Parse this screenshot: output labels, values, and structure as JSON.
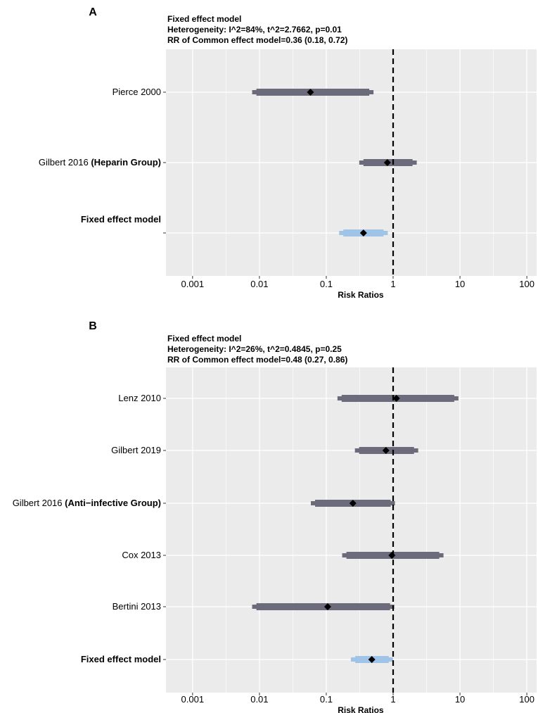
{
  "chart_data": [
    {
      "type": "forest",
      "panel_label": "A",
      "header": [
        "Fixed effect model",
        "Heterogeneity: I^2=84%, t^2=2.7662, p=0.01",
        "RR of Common effect model=0.36 (0.18, 0.72)"
      ],
      "xlabel": "Risk Ratios",
      "xscale": "log10",
      "xlim": [
        0.0004,
        140
      ],
      "xticks": [
        0.001,
        0.01,
        0.1,
        1,
        10,
        100
      ],
      "xtick_labels": [
        "0.001",
        "0.01",
        "0.1",
        "1",
        "10",
        "100"
      ],
      "reference_line": 1,
      "rows": [
        {
          "label_parts": [
            {
              "text": "Pierce 2000",
              "bold": false
            },
            {
              "text": "",
              "bold": false
            }
          ],
          "estimate": 0.058,
          "lower": 0.009,
          "upper": 0.44,
          "type": "study"
        },
        {
          "label_parts": [
            {
              "text": "Gilbert 2016 ",
              "bold": false
            },
            {
              "text": "(Heparin Group)",
              "bold": true
            }
          ],
          "estimate": 0.82,
          "lower": 0.36,
          "upper": 1.95,
          "type": "study"
        },
        {
          "label_parts": [
            {
              "text": "",
              "bold": false
            },
            {
              "text": "Fixed effect model",
              "bold": true
            }
          ],
          "estimate": 0.36,
          "lower": 0.18,
          "upper": 0.72,
          "type": "summary"
        }
      ]
    },
    {
      "type": "forest",
      "panel_label": "B",
      "header": [
        "Fixed effect model",
        "Heterogeneity: I^2=26%, t^2=0.4845, p=0.25",
        "RR of Common effect model=0.48 (0.27, 0.86)"
      ],
      "xlabel": "Risk Ratios",
      "xscale": "log10",
      "xlim": [
        0.0004,
        140
      ],
      "xticks": [
        0.001,
        0.01,
        0.1,
        1,
        10,
        100
      ],
      "xtick_labels": [
        "0.001",
        "0.01",
        "0.1",
        "1",
        "10",
        "100"
      ],
      "reference_line": 1,
      "rows": [
        {
          "label_parts": [
            {
              "text": "Lenz 2010",
              "bold": false
            },
            {
              "text": "",
              "bold": false
            }
          ],
          "estimate": 1.12,
          "lower": 0.17,
          "upper": 8.2,
          "type": "study"
        },
        {
          "label_parts": [
            {
              "text": "Gilbert 2019",
              "bold": false
            },
            {
              "text": "",
              "bold": false
            }
          ],
          "estimate": 0.78,
          "lower": 0.31,
          "upper": 2.05,
          "type": "study"
        },
        {
          "label_parts": [
            {
              "text": "Gilbert 2016 ",
              "bold": false
            },
            {
              "text": "(Anti−infective Group)",
              "bold": true
            }
          ],
          "estimate": 0.25,
          "lower": 0.068,
          "upper": 0.92,
          "type": "study"
        },
        {
          "label_parts": [
            {
              "text": "Cox 2013",
              "bold": false
            },
            {
              "text": "",
              "bold": false
            }
          ],
          "estimate": 0.96,
          "lower": 0.2,
          "upper": 4.9,
          "type": "study"
        },
        {
          "label_parts": [
            {
              "text": "Bertini 2013",
              "bold": false
            },
            {
              "text": "",
              "bold": false
            }
          ],
          "estimate": 0.105,
          "lower": 0.009,
          "upper": 0.9,
          "type": "study"
        },
        {
          "label_parts": [
            {
              "text": "",
              "bold": false
            },
            {
              "text": "Fixed effect model",
              "bold": true
            }
          ],
          "estimate": 0.48,
          "lower": 0.27,
          "upper": 0.86,
          "type": "summary"
        }
      ]
    }
  ],
  "colors": {
    "panel_bg": "#ebebeb",
    "grid": "#ffffff",
    "study_ci": "#6b6b7b",
    "summary_ci": "#9fc4e8",
    "marker": "#000000",
    "reference_line": "#000000"
  }
}
